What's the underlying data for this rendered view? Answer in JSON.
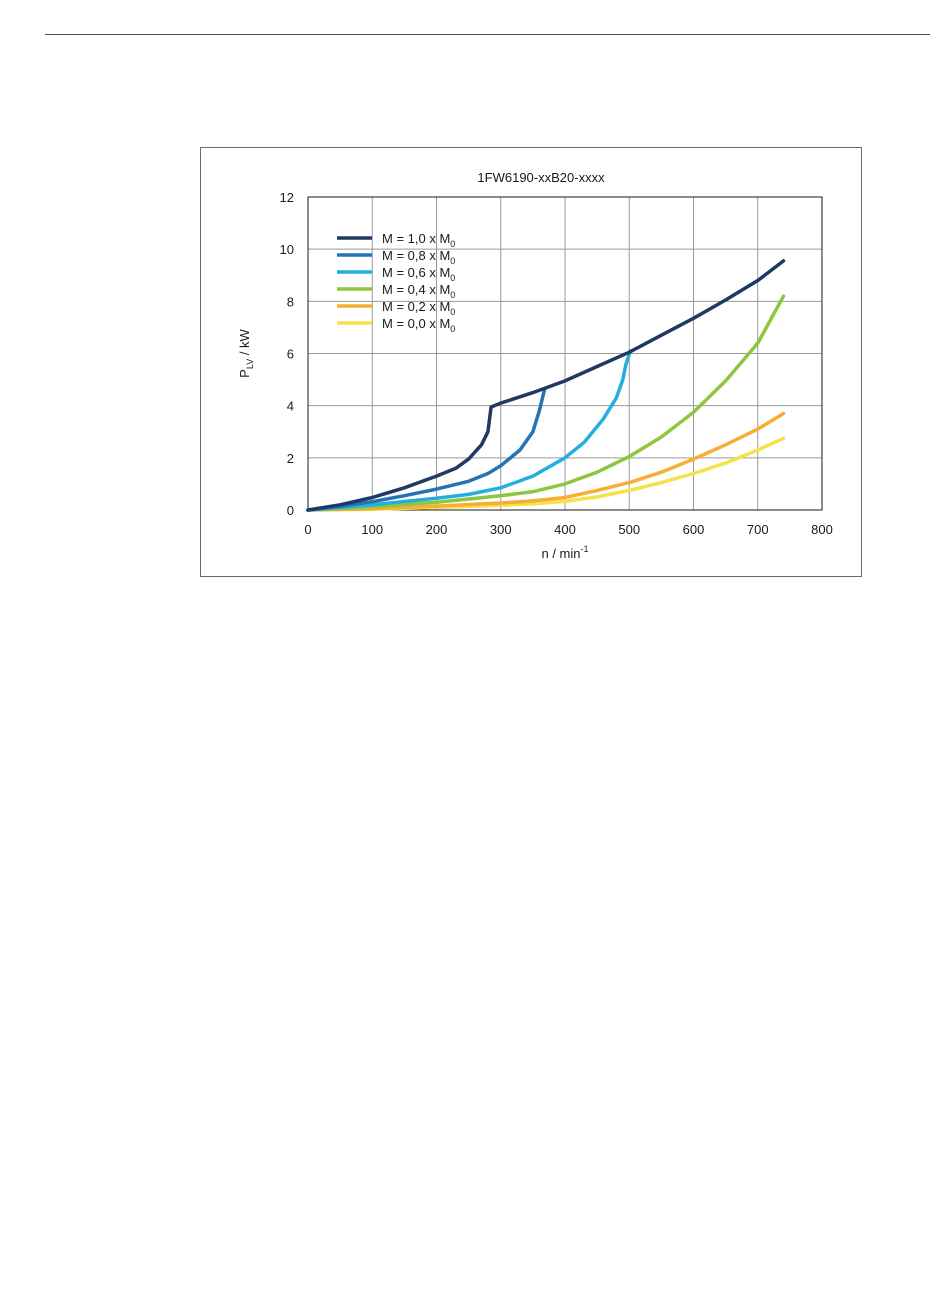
{
  "chart_data": {
    "type": "line",
    "title": "1FW6190-xxB20-xxxx",
    "xlabel": {
      "main": "n / min",
      "sup": "-1"
    },
    "ylabel": {
      "main": "P",
      "sub": "LV",
      "rest": " / kW"
    },
    "xlim": [
      0,
      800
    ],
    "ylim": [
      0,
      12
    ],
    "xticks": [
      0,
      100,
      200,
      300,
      400,
      500,
      600,
      700,
      800
    ],
    "yticks": [
      0,
      2,
      4,
      6,
      8,
      10,
      12
    ],
    "grid": true,
    "legend_position": "top-left",
    "series": [
      {
        "name": "M = 1,0 x M",
        "sub": "0",
        "color": "#1f3864",
        "points": [
          [
            0,
            0
          ],
          [
            50,
            0.2
          ],
          [
            100,
            0.48
          ],
          [
            150,
            0.85
          ],
          [
            200,
            1.3
          ],
          [
            230,
            1.6
          ],
          [
            250,
            1.95
          ],
          [
            270,
            2.5
          ],
          [
            280,
            3.0
          ],
          [
            285,
            3.95
          ],
          [
            300,
            4.1
          ],
          [
            350,
            4.5
          ],
          [
            400,
            4.95
          ],
          [
            450,
            5.5
          ],
          [
            500,
            6.05
          ],
          [
            550,
            6.7
          ],
          [
            600,
            7.35
          ],
          [
            650,
            8.05
          ],
          [
            700,
            8.8
          ],
          [
            740,
            9.55
          ]
        ]
      },
      {
        "name": "M = 0,8 x M",
        "sub": "0",
        "color": "#2373b5",
        "points": [
          [
            0,
            0
          ],
          [
            50,
            0.14
          ],
          [
            100,
            0.32
          ],
          [
            150,
            0.55
          ],
          [
            200,
            0.8
          ],
          [
            250,
            1.1
          ],
          [
            280,
            1.4
          ],
          [
            300,
            1.7
          ],
          [
            330,
            2.3
          ],
          [
            350,
            3.0
          ],
          [
            360,
            3.8
          ],
          [
            368,
            4.6
          ]
        ]
      },
      {
        "name": "M = 0,6 x M",
        "sub": "0",
        "color": "#23aee0",
        "points": [
          [
            0,
            0
          ],
          [
            100,
            0.2
          ],
          [
            200,
            0.45
          ],
          [
            250,
            0.6
          ],
          [
            300,
            0.85
          ],
          [
            350,
            1.3
          ],
          [
            400,
            2.0
          ],
          [
            430,
            2.6
          ],
          [
            460,
            3.5
          ],
          [
            480,
            4.3
          ],
          [
            490,
            5.0
          ],
          [
            495,
            5.6
          ],
          [
            502,
            6.1
          ]
        ]
      },
      {
        "name": "M = 0,4 x M",
        "sub": "0",
        "color": "#8dc63f",
        "points": [
          [
            0,
            0
          ],
          [
            100,
            0.12
          ],
          [
            200,
            0.3
          ],
          [
            300,
            0.55
          ],
          [
            350,
            0.7
          ],
          [
            400,
            1.0
          ],
          [
            450,
            1.45
          ],
          [
            500,
            2.05
          ],
          [
            550,
            2.8
          ],
          [
            600,
            3.75
          ],
          [
            650,
            4.95
          ],
          [
            700,
            6.4
          ],
          [
            740,
            8.2
          ]
        ]
      },
      {
        "name": "M = 0,2 x M",
        "sub": "0",
        "color": "#f6ae35",
        "points": [
          [
            0,
            0
          ],
          [
            100,
            0.05
          ],
          [
            200,
            0.15
          ],
          [
            300,
            0.27
          ],
          [
            350,
            0.35
          ],
          [
            400,
            0.48
          ],
          [
            450,
            0.75
          ],
          [
            500,
            1.05
          ],
          [
            550,
            1.45
          ],
          [
            600,
            1.95
          ],
          [
            650,
            2.5
          ],
          [
            700,
            3.1
          ],
          [
            740,
            3.7
          ]
        ]
      },
      {
        "name": "M = 0,0 x M",
        "sub": "0",
        "color": "#f4e24a",
        "points": [
          [
            0,
            0
          ],
          [
            100,
            0.03
          ],
          [
            200,
            0.1
          ],
          [
            300,
            0.18
          ],
          [
            350,
            0.24
          ],
          [
            400,
            0.33
          ],
          [
            450,
            0.5
          ],
          [
            500,
            0.75
          ],
          [
            550,
            1.05
          ],
          [
            600,
            1.4
          ],
          [
            650,
            1.8
          ],
          [
            700,
            2.3
          ],
          [
            740,
            2.75
          ]
        ]
      }
    ]
  }
}
